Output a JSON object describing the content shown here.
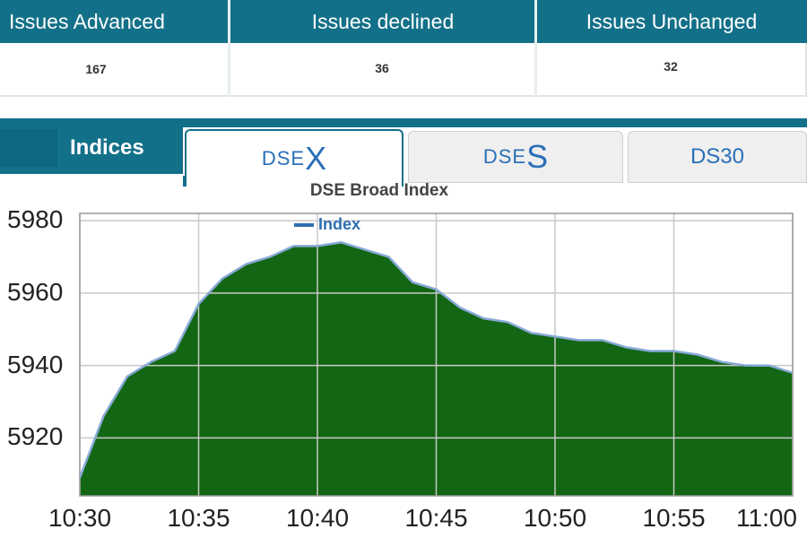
{
  "issues": {
    "headers": [
      "Issues Advanced",
      "Issues declined",
      "Issues Unchanged"
    ],
    "values": [
      "167",
      "36",
      "32"
    ]
  },
  "indices": {
    "label": "Indices",
    "tabs": [
      {
        "prefix": "DSE",
        "suffix": "X",
        "active": true
      },
      {
        "prefix": "DSE",
        "suffix": "S",
        "active": false
      },
      {
        "label": "DS30",
        "active": false
      }
    ]
  },
  "colors": {
    "header_bg": "#137089",
    "area_fill": "#136613",
    "line": "#87a9d6",
    "tab_text": "#2a6fb8"
  },
  "chart_data": {
    "type": "area",
    "title": "DSE Broad Index",
    "series": [
      {
        "name": "Index",
        "x": [
          "10:30",
          "10:31",
          "10:32",
          "10:33",
          "10:34",
          "10:35",
          "10:36",
          "10:37",
          "10:38",
          "10:39",
          "10:40",
          "10:41",
          "10:42",
          "10:43",
          "10:44",
          "10:45",
          "10:46",
          "10:47",
          "10:48",
          "10:49",
          "10:50",
          "10:51",
          "10:52",
          "10:53",
          "10:54",
          "10:55",
          "10:56",
          "10:57",
          "10:58",
          "10:59",
          "11:00"
        ],
        "values": [
          5909,
          5926,
          5937,
          5941,
          5944,
          5957,
          5964,
          5968,
          5970,
          5973,
          5973,
          5974,
          5972,
          5970,
          5963,
          5961,
          5956,
          5953,
          5952,
          5949,
          5948,
          5947,
          5947,
          5945,
          5944,
          5944,
          5943,
          5941,
          5940,
          5940,
          5938
        ]
      }
    ],
    "x_ticks": [
      "10:30",
      "10:35",
      "10:40",
      "10:45",
      "10:50",
      "10:55",
      "11:00"
    ],
    "y_ticks": [
      5920,
      5940,
      5960,
      5980
    ],
    "ylim": [
      5904,
      5982
    ],
    "grid": true,
    "legend": "top-center"
  }
}
